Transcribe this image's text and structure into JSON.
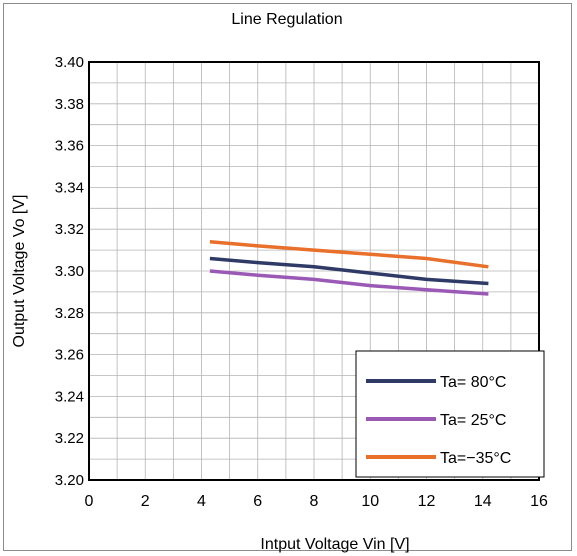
{
  "chart_data": {
    "type": "line",
    "title": "Line Regulation",
    "xlabel": "Intput Voltage Vin [V]",
    "ylabel": "Output Voltage Vo [V]",
    "xlim": [
      0,
      16
    ],
    "ylim": [
      3.2,
      3.4
    ],
    "x_ticks": [
      "0",
      "2",
      "4",
      "6",
      "8",
      "10",
      "12",
      "14",
      "16"
    ],
    "y_ticks": [
      "3.20",
      "3.22",
      "3.24",
      "3.26",
      "3.28",
      "3.30",
      "3.32",
      "3.34",
      "3.36",
      "3.38",
      "3.40"
    ],
    "grid": true,
    "legend_position": "bottom-right",
    "series": [
      {
        "name": "Ta=  80°C",
        "color": "#2f3a66",
        "x": [
          4.3,
          6,
          8,
          10,
          12,
          14.2
        ],
        "y": [
          3.306,
          3.304,
          3.302,
          3.299,
          3.296,
          3.294
        ]
      },
      {
        "name": "Ta=  25°C",
        "color": "#9b59b6",
        "x": [
          4.3,
          6,
          8,
          10,
          12,
          14.2
        ],
        "y": [
          3.3,
          3.298,
          3.296,
          3.293,
          3.291,
          3.289
        ]
      },
      {
        "name": "Ta=−35°C",
        "color": "#e8702a",
        "x": [
          4.3,
          6,
          8,
          10,
          12,
          14.2
        ],
        "y": [
          3.314,
          3.312,
          3.31,
          3.308,
          3.306,
          3.302
        ]
      }
    ]
  }
}
